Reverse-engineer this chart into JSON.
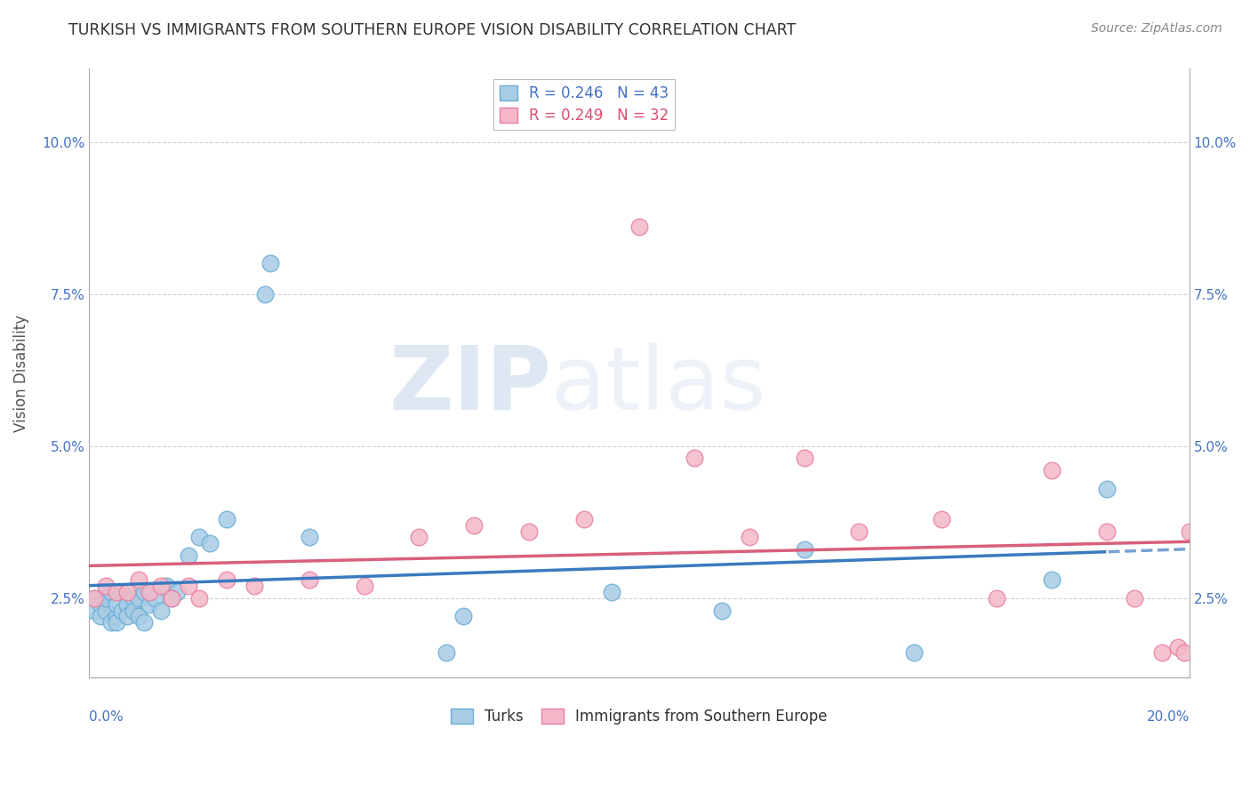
{
  "title": "TURKISH VS IMMIGRANTS FROM SOUTHERN EUROPE VISION DISABILITY CORRELATION CHART",
  "source": "Source: ZipAtlas.com",
  "ylabel": "Vision Disability",
  "ytick_labels": [
    "2.5%",
    "5.0%",
    "7.5%",
    "10.0%"
  ],
  "ytick_values": [
    0.025,
    0.05,
    0.075,
    0.1
  ],
  "xlim": [
    0.0,
    0.2
  ],
  "ylim": [
    0.012,
    0.112
  ],
  "legend1_R": "0.246",
  "legend1_N": "43",
  "legend2_R": "0.249",
  "legend2_N": "32",
  "color_turks": "#a8cce4",
  "color_turks_edge": "#6aaed6",
  "color_immigrants": "#f4b8c8",
  "color_immigrants_edge": "#e87fa0",
  "color_turks_line": "#3a7abf",
  "color_immigrants_line": "#d95f7a",
  "background_color": "#ffffff",
  "grid_color": "#cccccc",
  "turks_x": [
    0.001,
    0.001,
    0.002,
    0.002,
    0.003,
    0.003,
    0.003,
    0.004,
    0.004,
    0.005,
    0.005,
    0.005,
    0.006,
    0.006,
    0.007,
    0.007,
    0.008,
    0.008,
    0.009,
    0.009,
    0.01,
    0.01,
    0.011,
    0.012,
    0.013,
    0.014,
    0.015,
    0.016,
    0.018,
    0.02,
    0.022,
    0.025,
    0.032,
    0.033,
    0.04,
    0.065,
    0.068,
    0.095,
    0.115,
    0.13,
    0.15,
    0.175,
    0.185
  ],
  "turks_y": [
    0.025,
    0.023,
    0.024,
    0.022,
    0.026,
    0.023,
    0.025,
    0.021,
    0.026,
    0.022,
    0.024,
    0.021,
    0.023,
    0.026,
    0.024,
    0.022,
    0.025,
    0.023,
    0.025,
    0.022,
    0.021,
    0.026,
    0.024,
    0.025,
    0.023,
    0.027,
    0.025,
    0.026,
    0.032,
    0.035,
    0.034,
    0.038,
    0.075,
    0.08,
    0.035,
    0.016,
    0.022,
    0.026,
    0.023,
    0.033,
    0.016,
    0.028,
    0.043
  ],
  "immigrants_x": [
    0.001,
    0.003,
    0.005,
    0.007,
    0.009,
    0.011,
    0.013,
    0.015,
    0.018,
    0.02,
    0.025,
    0.03,
    0.04,
    0.05,
    0.06,
    0.07,
    0.08,
    0.09,
    0.1,
    0.11,
    0.12,
    0.13,
    0.14,
    0.155,
    0.165,
    0.175,
    0.185,
    0.19,
    0.195,
    0.198,
    0.199,
    0.2
  ],
  "immigrants_y": [
    0.025,
    0.027,
    0.026,
    0.026,
    0.028,
    0.026,
    0.027,
    0.025,
    0.027,
    0.025,
    0.028,
    0.027,
    0.028,
    0.027,
    0.035,
    0.037,
    0.036,
    0.038,
    0.086,
    0.048,
    0.035,
    0.048,
    0.036,
    0.038,
    0.025,
    0.046,
    0.036,
    0.025,
    0.016,
    0.017,
    0.016,
    0.036
  ],
  "watermark_zip": "ZIP",
  "watermark_atlas": "atlas"
}
